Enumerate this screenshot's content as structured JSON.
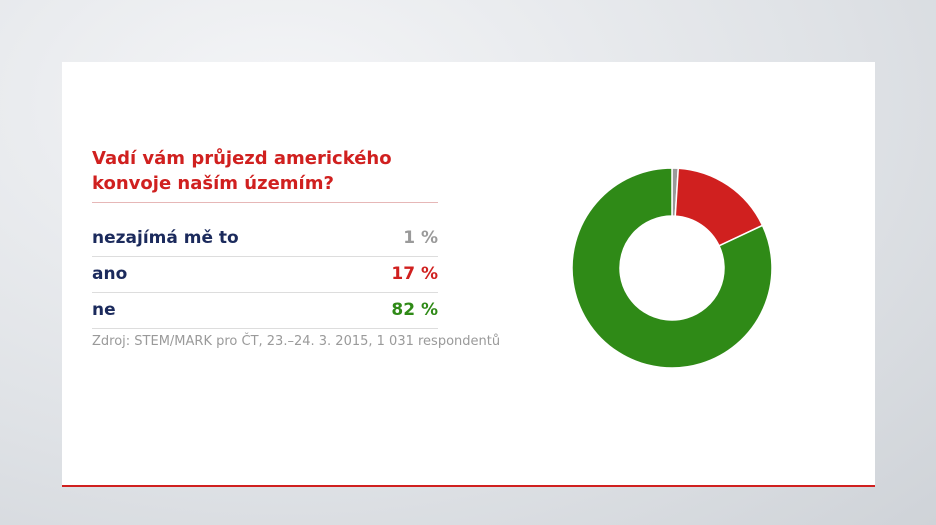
{
  "chart_data": {
    "type": "pie",
    "title": "Vadí vám průjezd amerického konvoje naším územím?",
    "categories": [
      "nezajímá mě to",
      "ano",
      "ne"
    ],
    "values": [
      1,
      17,
      82
    ],
    "value_labels": [
      "1 %",
      "17 %",
      "82 %"
    ],
    "colors": [
      "#9a9a9a",
      "#d0201f",
      "#2f8a17"
    ],
    "note": "Zdroj: STEM/MARK pro ČT, 23.–24. 3. 2015, 1 031 respondentů"
  }
}
